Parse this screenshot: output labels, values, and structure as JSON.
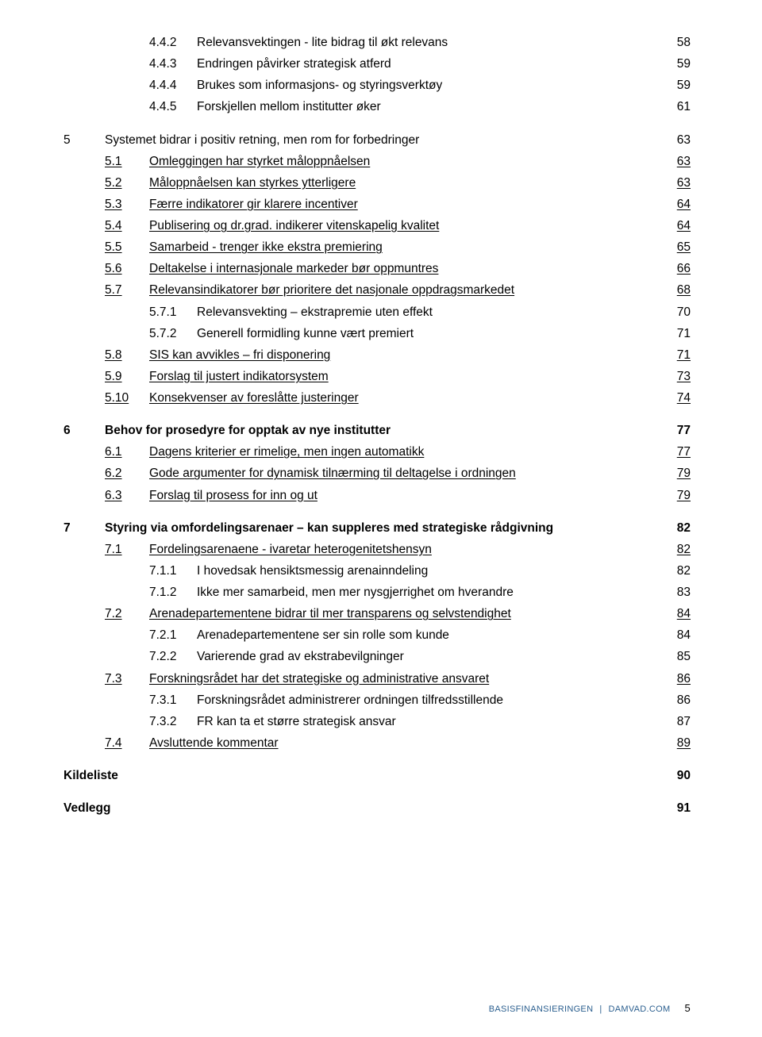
{
  "toc": [
    {
      "lvl": 2,
      "num": "4.4.2",
      "title": "Relevansvektingen  - lite bidrag til økt relevans",
      "page": "58",
      "underline": false,
      "bold": false,
      "gap": false
    },
    {
      "lvl": 2,
      "num": "4.4.3",
      "title": "Endringen påvirker strategisk atferd",
      "page": "59",
      "underline": false,
      "bold": false,
      "gap": false
    },
    {
      "lvl": 2,
      "num": "4.4.4",
      "title": "Brukes som informasjons- og styringsverktøy",
      "page": "59",
      "underline": false,
      "bold": false,
      "gap": false
    },
    {
      "lvl": 2,
      "num": "4.4.5",
      "title": "Forskjellen mellom institutter øker",
      "page": "61",
      "underline": false,
      "bold": false,
      "gap": false
    },
    {
      "lvl": 0,
      "num": "5",
      "title": "Systemet bidrar i positiv retning, men rom for forbedringer",
      "page": "63",
      "underline": false,
      "bold": false,
      "gap": true
    },
    {
      "lvl": 1,
      "num": "5.1",
      "title": "Omleggingen har styrket måloppnåelsen",
      "page": "63",
      "underline": true,
      "bold": false,
      "gap": false
    },
    {
      "lvl": 1,
      "num": "5.2",
      "title": "Måloppnåelsen kan styrkes ytterligere",
      "page": "63",
      "underline": true,
      "bold": false,
      "gap": false
    },
    {
      "lvl": 1,
      "num": "5.3",
      "title": "Færre indikatorer gir klarere incentiver",
      "page": "64",
      "underline": true,
      "bold": false,
      "gap": false
    },
    {
      "lvl": 1,
      "num": "5.4",
      "title": "Publisering og dr.grad. indikerer vitenskapelig kvalitet",
      "page": "64",
      "underline": true,
      "bold": false,
      "gap": false
    },
    {
      "lvl": 1,
      "num": "5.5",
      "title": "Samarbeid - trenger ikke ekstra premiering",
      "page": "65",
      "underline": true,
      "bold": false,
      "gap": false
    },
    {
      "lvl": 1,
      "num": "5.6",
      "title": "Deltakelse i internasjonale markeder bør oppmuntres",
      "page": "66",
      "underline": true,
      "bold": false,
      "gap": false
    },
    {
      "lvl": 1,
      "num": "5.7",
      "title": "Relevansindikatorer bør prioritere det nasjonale oppdragsmarkedet",
      "page": "68",
      "underline": true,
      "bold": false,
      "gap": false
    },
    {
      "lvl": 2,
      "num": "5.7.1",
      "title": "Relevansvekting – ekstrapremie uten effekt",
      "page": "70",
      "underline": false,
      "bold": false,
      "gap": false
    },
    {
      "lvl": 2,
      "num": "5.7.2",
      "title": "Generell formidling kunne vært premiert",
      "page": "71",
      "underline": false,
      "bold": false,
      "gap": false
    },
    {
      "lvl": 1,
      "num": "5.8",
      "title": "SIS kan avvikles – fri disponering",
      "page": "71",
      "underline": true,
      "bold": false,
      "gap": false
    },
    {
      "lvl": 1,
      "num": "5.9",
      "title": "Forslag til justert indikatorsystem",
      "page": "73",
      "underline": true,
      "bold": false,
      "gap": false
    },
    {
      "lvl": 1,
      "num": "5.10",
      "title": "Konsekvenser av foreslåtte justeringer",
      "page": "74",
      "underline": true,
      "bold": false,
      "gap": false
    },
    {
      "lvl": 0,
      "num": "6",
      "title": "Behov for prosedyre for opptak av nye institutter",
      "page": "77",
      "underline": false,
      "bold": true,
      "gap": true
    },
    {
      "lvl": 1,
      "num": "6.1",
      "title": "Dagens kriterier er rimelige, men ingen automatikk",
      "page": "77",
      "underline": true,
      "bold": false,
      "gap": false
    },
    {
      "lvl": 1,
      "num": "6.2",
      "title": "Gode argumenter for dynamisk tilnærming til deltagelse i ordningen",
      "page": "79",
      "underline": true,
      "bold": false,
      "gap": false
    },
    {
      "lvl": 1,
      "num": "6.3",
      "title": "Forslag til prosess for inn og ut",
      "page": "79",
      "underline": true,
      "bold": false,
      "gap": false
    },
    {
      "lvl": 0,
      "num": "7",
      "title": "Styring via omfordelingsarenaer – kan suppleres med strategiske rådgivning",
      "page": "82",
      "underline": false,
      "bold": true,
      "gap": true
    },
    {
      "lvl": 1,
      "num": "7.1",
      "title": "Fordelingsarenaene - ivaretar heterogenitetshensyn",
      "page": "82",
      "underline": true,
      "bold": false,
      "gap": false
    },
    {
      "lvl": 2,
      "num": "7.1.1",
      "title": "I hovedsak hensiktsmessig arenainndeling",
      "page": "82",
      "underline": false,
      "bold": false,
      "gap": false
    },
    {
      "lvl": 2,
      "num": "7.1.2",
      "title": "Ikke mer samarbeid, men mer nysgjerrighet om hverandre",
      "page": "83",
      "underline": false,
      "bold": false,
      "gap": false
    },
    {
      "lvl": 1,
      "num": "7.2",
      "title": "Arenadepartementene bidrar til mer transparens og selvstendighet",
      "page": "84",
      "underline": true,
      "bold": false,
      "gap": false
    },
    {
      "lvl": 2,
      "num": "7.2.1",
      "title": "Arenadepartementene ser sin rolle som kunde",
      "page": "84",
      "underline": false,
      "bold": false,
      "gap": false
    },
    {
      "lvl": 2,
      "num": "7.2.2",
      "title": "Varierende grad av ekstrabevilgninger",
      "page": "85",
      "underline": false,
      "bold": false,
      "gap": false
    },
    {
      "lvl": 1,
      "num": "7.3",
      "title": "Forskningsrådet har det strategiske og administrative ansvaret",
      "page": "86",
      "underline": true,
      "bold": false,
      "gap": false
    },
    {
      "lvl": 2,
      "num": "7.3.1",
      "title": "Forskningsrådet administrerer ordningen tilfredsstillende",
      "page": "86",
      "underline": false,
      "bold": false,
      "gap": false
    },
    {
      "lvl": 2,
      "num": "7.3.2",
      "title": "FR kan ta et større strategisk ansvar",
      "page": "87",
      "underline": false,
      "bold": false,
      "gap": false
    },
    {
      "lvl": 1,
      "num": "7.4",
      "title": "Avsluttende kommentar",
      "page": "89",
      "underline": true,
      "bold": false,
      "gap": false
    },
    {
      "lvl": 0,
      "num": "",
      "title": "Kildeliste",
      "page": "90",
      "underline": false,
      "bold": true,
      "gap": true
    },
    {
      "lvl": 0,
      "num": "",
      "title": "Vedlegg",
      "page": "91",
      "underline": false,
      "bold": true,
      "gap": true
    }
  ],
  "footer": {
    "text": "BASISFINANSIERINGEN",
    "sep": "|",
    "site": "DAMVAD.COM",
    "page": "5"
  }
}
